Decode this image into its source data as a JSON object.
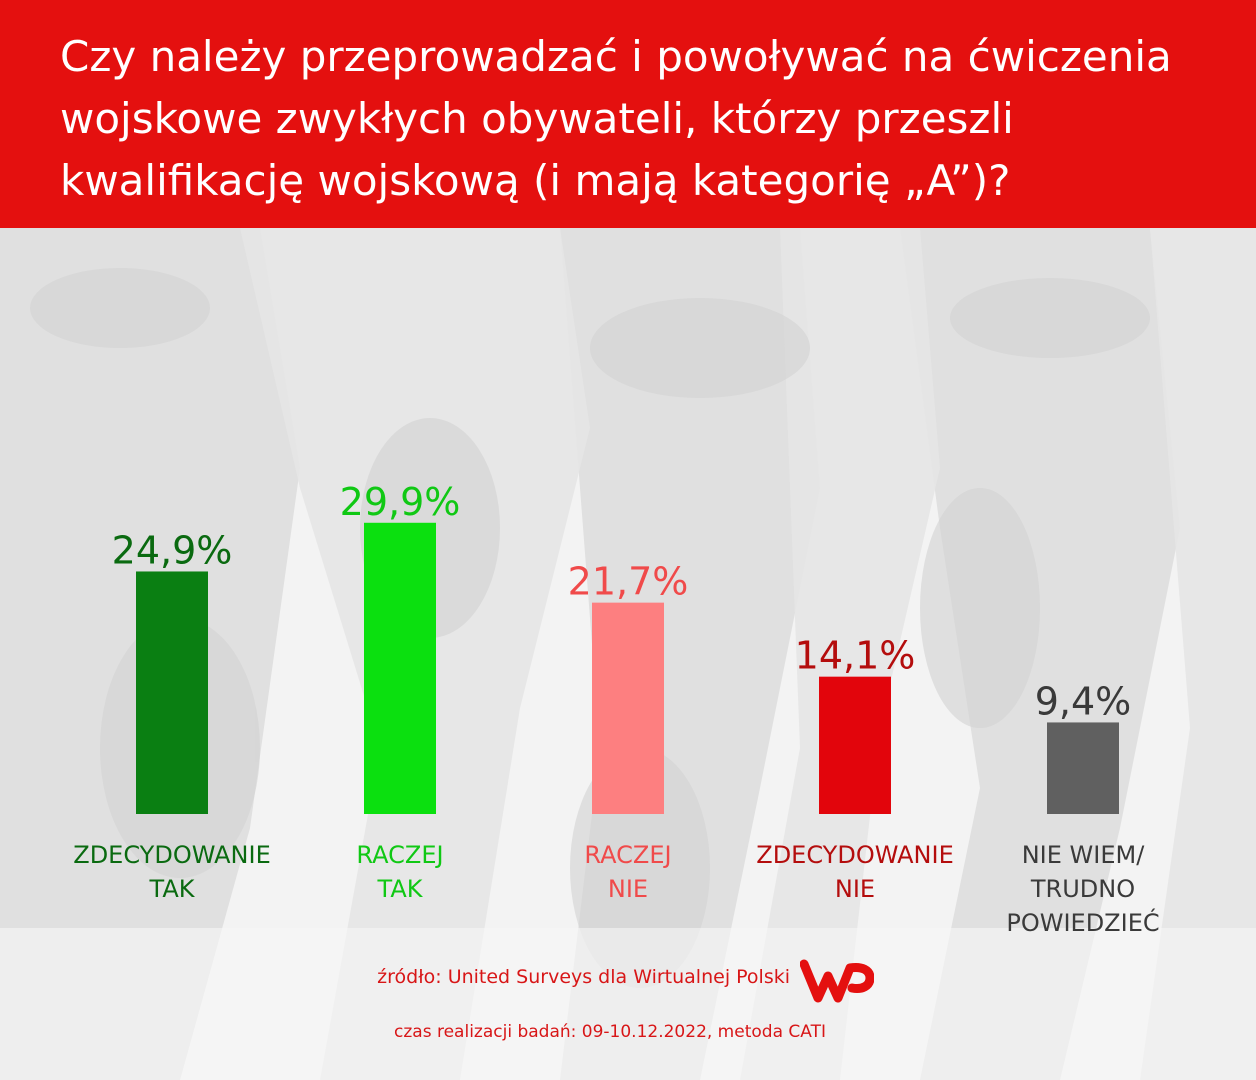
{
  "header": {
    "title": "Czy należy przeprowadzać i powoływać na ćwiczenia wojskowe zwykłych obywateli, którzy przeszli kwalifikację wojskową (i mają kategorię „A”)?",
    "background_color": "#e4100f"
  },
  "chart_data": {
    "type": "bar",
    "title": "Czy należy przeprowadzać i powoływać na ćwiczenia wojskowe zwykłych obywateli, którzy przeszli kwalifikację wojskową (i mają kategorię „A”)?",
    "categories": [
      "ZDECYDOWANIE TAK",
      "RACZEJ TAK",
      "RACZEJ NIE",
      "ZDECYDOWANIE NIE",
      "NIE WIEM/ TRUDNO POWIEDZIEĆ"
    ],
    "category_lines": [
      [
        "ZDECYDOWANIE",
        "TAK"
      ],
      [
        "RACZEJ",
        "TAK"
      ],
      [
        "RACZEJ",
        "NIE"
      ],
      [
        "ZDECYDOWANIE",
        "NIE"
      ],
      [
        "NIE WIEM/",
        "TRUDNO",
        "POWIEDZIEĆ"
      ]
    ],
    "values": [
      24.9,
      29.9,
      21.7,
      14.1,
      9.4
    ],
    "value_labels": [
      "24,9%",
      "29,9%",
      "21,7%",
      "14,1%",
      "9,4%"
    ],
    "bar_colors": [
      "#0a7f12",
      "#0be00f",
      "#fd7f80",
      "#e2050c",
      "#606060"
    ],
    "label_colors": [
      "#0a6a10",
      "#10c814",
      "#f04a4a",
      "#b40d0d",
      "#3a3a3a"
    ],
    "xlabel": "",
    "ylabel": "",
    "ylim": [
      0,
      30
    ],
    "grid": false,
    "legend": "none"
  },
  "footer": {
    "source": "źródło: United Surveys dla Wirtualnej Polski",
    "date": "czas realizacji badań: 09-10.12.2022, metoda CATI",
    "logo_icon": "wp-logo-icon",
    "text_color": "#d81617"
  }
}
